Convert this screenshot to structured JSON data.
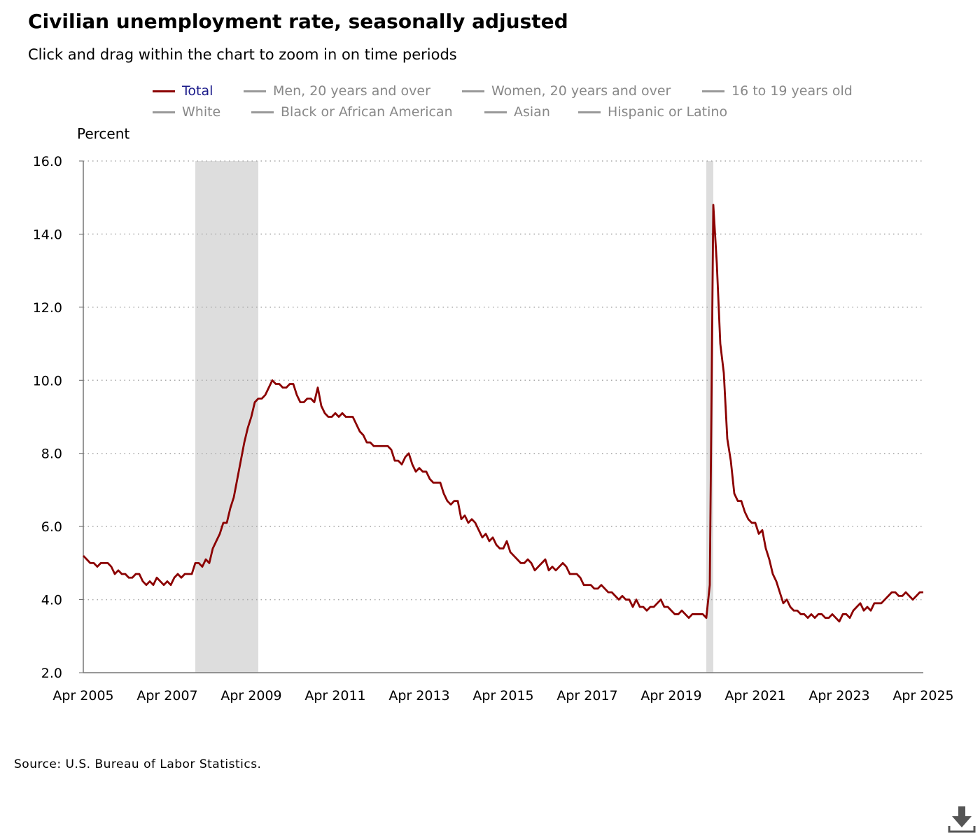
{
  "title": "Civilian unemployment rate, seasonally adjusted",
  "subtitle": "Click and drag within the chart to zoom in on time periods",
  "source": "Source: U.S. Bureau of Labor Statistics.",
  "legend": [
    {
      "label": "Total",
      "active": true
    },
    {
      "label": "Men, 20 years and over",
      "active": false
    },
    {
      "label": "Women, 20 years and over",
      "active": false
    },
    {
      "label": "16 to 19 years old",
      "active": false
    },
    {
      "label": "White",
      "active": false
    },
    {
      "label": "Black or African American",
      "active": false
    },
    {
      "label": "Asian",
      "active": false
    },
    {
      "label": "Hispanic or Latino",
      "active": false
    }
  ],
  "icons": {
    "download": "download-icon"
  },
  "colors": {
    "series": "#8b0000",
    "recession": "#dddddd",
    "legend_active_text": "#1a1a8a",
    "legend_inactive": "#999999"
  },
  "chart_data": {
    "type": "line",
    "ylabel": "Percent",
    "ylim": [
      2.0,
      16.0
    ],
    "yticks": [
      "2.0",
      "4.0",
      "6.0",
      "8.0",
      "10.0",
      "12.0",
      "14.0",
      "16.0"
    ],
    "xticks": [
      "Apr 2005",
      "Apr 2007",
      "Apr 2009",
      "Apr 2011",
      "Apr 2013",
      "Apr 2015",
      "Apr 2017",
      "Apr 2019",
      "Apr 2021",
      "Apr 2023",
      "Apr 2025"
    ],
    "x_start": "2005-04",
    "x_end": "2025-04",
    "grid": "horizontal dotted",
    "recessions": [
      {
        "start": "2007-12",
        "end": "2009-06"
      },
      {
        "start": "2020-02",
        "end": "2020-04"
      }
    ],
    "series": [
      {
        "name": "Total",
        "start": "2005-04",
        "values": [
          5.2,
          5.1,
          5.0,
          5.0,
          4.9,
          5.0,
          5.0,
          5.0,
          4.9,
          4.7,
          4.8,
          4.7,
          4.7,
          4.6,
          4.6,
          4.7,
          4.7,
          4.5,
          4.4,
          4.5,
          4.4,
          4.6,
          4.5,
          4.4,
          4.5,
          4.4,
          4.6,
          4.7,
          4.6,
          4.7,
          4.7,
          4.7,
          5.0,
          5.0,
          4.9,
          5.1,
          5.0,
          5.4,
          5.6,
          5.8,
          6.1,
          6.1,
          6.5,
          6.8,
          7.3,
          7.8,
          8.3,
          8.7,
          9.0,
          9.4,
          9.5,
          9.5,
          9.6,
          9.8,
          10.0,
          9.9,
          9.9,
          9.8,
          9.8,
          9.9,
          9.9,
          9.6,
          9.4,
          9.4,
          9.5,
          9.5,
          9.4,
          9.8,
          9.3,
          9.1,
          9.0,
          9.0,
          9.1,
          9.0,
          9.1,
          9.0,
          9.0,
          9.0,
          8.8,
          8.6,
          8.5,
          8.3,
          8.3,
          8.2,
          8.2,
          8.2,
          8.2,
          8.2,
          8.1,
          7.8,
          7.8,
          7.7,
          7.9,
          8.0,
          7.7,
          7.5,
          7.6,
          7.5,
          7.5,
          7.3,
          7.2,
          7.2,
          7.2,
          6.9,
          6.7,
          6.6,
          6.7,
          6.7,
          6.2,
          6.3,
          6.1,
          6.2,
          6.1,
          5.9,
          5.7,
          5.8,
          5.6,
          5.7,
          5.5,
          5.4,
          5.4,
          5.6,
          5.3,
          5.2,
          5.1,
          5.0,
          5.0,
          5.1,
          5.0,
          4.8,
          4.9,
          5.0,
          5.1,
          4.8,
          4.9,
          4.8,
          4.9,
          5.0,
          4.9,
          4.7,
          4.7,
          4.7,
          4.6,
          4.4,
          4.4,
          4.4,
          4.3,
          4.3,
          4.4,
          4.3,
          4.2,
          4.2,
          4.1,
          4.0,
          4.1,
          4.0,
          4.0,
          3.8,
          4.0,
          3.8,
          3.8,
          3.7,
          3.8,
          3.8,
          3.9,
          4.0,
          3.8,
          3.8,
          3.7,
          3.6,
          3.6,
          3.7,
          3.6,
          3.5,
          3.6,
          3.6,
          3.6,
          3.6,
          3.5,
          4.4,
          14.8,
          13.2,
          11.0,
          10.2,
          8.4,
          7.8,
          6.9,
          6.7,
          6.7,
          6.4,
          6.2,
          6.1,
          6.1,
          5.8,
          5.9,
          5.4,
          5.1,
          4.7,
          4.5,
          4.2,
          3.9,
          4.0,
          3.8,
          3.7,
          3.7,
          3.6,
          3.6,
          3.5,
          3.6,
          3.5,
          3.6,
          3.6,
          3.5,
          3.5,
          3.6,
          3.5,
          3.4,
          3.6,
          3.6,
          3.5,
          3.7,
          3.8,
          3.9,
          3.7,
          3.8,
          3.7,
          3.9,
          3.9,
          3.9,
          4.0,
          4.1,
          4.2,
          4.2,
          4.1,
          4.1,
          4.2,
          4.1,
          4.0,
          4.1,
          4.2,
          4.2
        ]
      }
    ]
  }
}
